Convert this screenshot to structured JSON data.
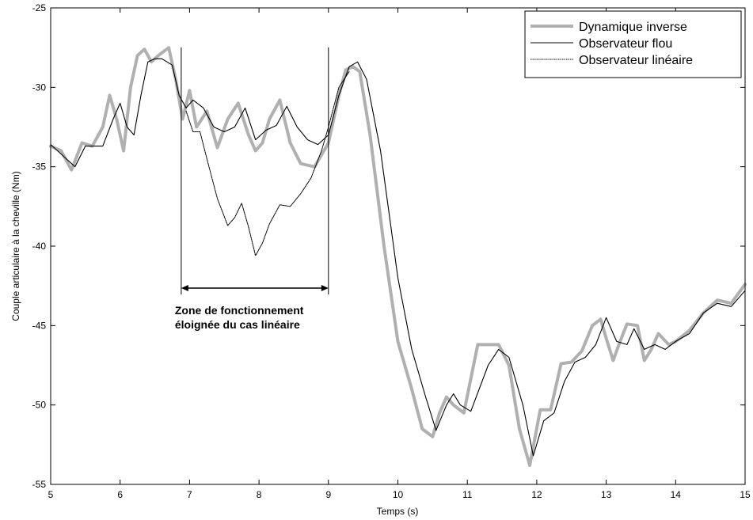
{
  "chart_data": {
    "type": "line",
    "title": "",
    "xlabel": "Temps (s)",
    "ylabel": "Couple articulaire à la cheville (Nm)",
    "xlim": [
      5,
      15
    ],
    "ylim": [
      -55,
      -25
    ],
    "xticks": [
      5,
      6,
      7,
      8,
      9,
      10,
      11,
      12,
      13,
      14,
      15
    ],
    "yticks": [
      -25,
      -30,
      -35,
      -40,
      -45,
      -50,
      -55
    ],
    "grid": false,
    "legend_position": "top-right",
    "series": [
      {
        "name": "Dynamique inverse",
        "color": "#b0b0b0",
        "style": "thick",
        "x": [
          5.0,
          5.15,
          5.3,
          5.45,
          5.6,
          5.75,
          5.85,
          5.95,
          6.05,
          6.15,
          6.25,
          6.35,
          6.45,
          6.55,
          6.7,
          6.8,
          6.9,
          7.0,
          7.1,
          7.25,
          7.4,
          7.55,
          7.7,
          7.85,
          7.95,
          8.05,
          8.15,
          8.3,
          8.45,
          8.6,
          8.8,
          9.0,
          9.15,
          9.25,
          9.35,
          9.45,
          9.6,
          9.8,
          10.0,
          10.2,
          10.35,
          10.5,
          10.6,
          10.7,
          10.8,
          10.95,
          11.15,
          11.3,
          11.45,
          11.6,
          11.75,
          11.9,
          12.05,
          12.2,
          12.35,
          12.5,
          12.65,
          12.8,
          12.92,
          13.0,
          13.1,
          13.2,
          13.3,
          13.45,
          13.55,
          13.65,
          13.75,
          13.9,
          14.0,
          14.2,
          14.4,
          14.6,
          14.8,
          15.0
        ],
        "values": [
          -33.7,
          -34.0,
          -35.2,
          -33.5,
          -33.7,
          -32.5,
          -30.5,
          -32.0,
          -34.0,
          -30.0,
          -28.0,
          -27.6,
          -28.4,
          -28.0,
          -27.5,
          -29.5,
          -32.0,
          -30.2,
          -32.5,
          -31.5,
          -33.8,
          -32.0,
          -31.0,
          -33.0,
          -34.0,
          -33.5,
          -32.0,
          -30.8,
          -33.5,
          -34.8,
          -35.0,
          -33.5,
          -30.5,
          -28.9,
          -28.7,
          -29.0,
          -33.0,
          -40.0,
          -46.0,
          -49.0,
          -51.5,
          -52.0,
          -50.5,
          -49.5,
          -50.0,
          -50.5,
          -46.2,
          -46.2,
          -46.2,
          -47.5,
          -51.5,
          -53.8,
          -50.3,
          -50.3,
          -47.4,
          -47.3,
          -46.6,
          -45.0,
          -44.6,
          -45.8,
          -47.2,
          -46.0,
          -44.9,
          -45.0,
          -47.2,
          -46.5,
          -45.5,
          -46.2,
          -46.0,
          -45.3,
          -44.2,
          -43.4,
          -43.6,
          -42.4
        ]
      },
      {
        "name": "Observateur flou",
        "color": "#000000",
        "style": "thin-solid",
        "x": [
          5.0,
          5.15,
          5.35,
          5.5,
          5.75,
          5.9,
          6.0,
          6.1,
          6.2,
          6.3,
          6.4,
          6.5,
          6.6,
          6.75,
          6.85,
          6.95,
          7.05,
          7.2,
          7.35,
          7.5,
          7.65,
          7.8,
          7.95,
          8.1,
          8.25,
          8.4,
          8.55,
          8.7,
          8.85,
          9.0,
          9.15,
          9.3,
          9.42,
          9.55,
          9.75,
          10.0,
          10.2,
          10.4,
          10.55,
          10.7,
          10.8,
          10.9,
          11.05,
          11.3,
          11.45,
          11.6,
          11.8,
          11.95,
          12.1,
          12.25,
          12.4,
          12.55,
          12.7,
          12.85,
          13.0,
          13.15,
          13.3,
          13.4,
          13.55,
          13.7,
          13.85,
          14.0,
          14.2,
          14.4,
          14.6,
          14.8,
          15.0
        ],
        "values": [
          -33.6,
          -34.2,
          -35.0,
          -33.7,
          -33.7,
          -32.0,
          -31.0,
          -32.5,
          -33.0,
          -30.5,
          -28.4,
          -28.2,
          -28.2,
          -28.6,
          -30.5,
          -31.3,
          -30.8,
          -31.3,
          -32.5,
          -32.8,
          -32.5,
          -31.3,
          -33.3,
          -32.7,
          -32.4,
          -31.2,
          -32.5,
          -33.3,
          -33.6,
          -33.0,
          -30.5,
          -28.7,
          -28.4,
          -29.5,
          -34.0,
          -42.0,
          -46.5,
          -49.5,
          -51.6,
          -50.0,
          -49.3,
          -50.0,
          -50.4,
          -47.5,
          -46.5,
          -47.0,
          -50.0,
          -53.2,
          -51.0,
          -50.5,
          -48.5,
          -47.3,
          -47.0,
          -46.2,
          -44.5,
          -46.0,
          -46.2,
          -45.2,
          -46.5,
          -46.2,
          -46.5,
          -46.0,
          -45.5,
          -44.2,
          -43.6,
          -43.8,
          -42.8
        ]
      },
      {
        "name": "Observateur linéaire",
        "color": "#000000",
        "style": "thin-dotted",
        "x": [
          6.95,
          7.05,
          7.15,
          7.25,
          7.4,
          7.55,
          7.65,
          7.75,
          7.85,
          7.95,
          8.05,
          8.15,
          8.3,
          8.45,
          8.6,
          8.75,
          8.9,
          9.0,
          9.15,
          9.3
        ],
        "values": [
          -31.5,
          -32.8,
          -32.8,
          -34.5,
          -37.0,
          -38.7,
          -38.2,
          -37.3,
          -38.8,
          -40.6,
          -39.8,
          -38.6,
          -37.4,
          -37.5,
          -36.7,
          -35.7,
          -34.0,
          -32.5,
          -30.0,
          -29.0
        ]
      }
    ],
    "annotations": [
      {
        "text_line1": "Zone de fonctionnement",
        "text_line2": "éloignée du cas linéaire",
        "x_from": 6.88,
        "x_to": 9.0
      }
    ]
  }
}
